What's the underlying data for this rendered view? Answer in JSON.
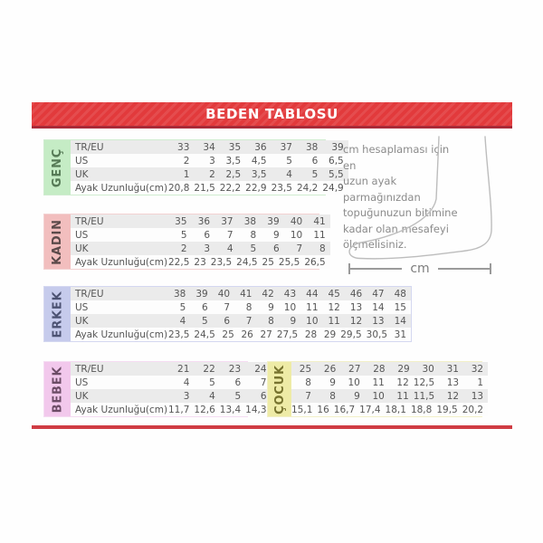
{
  "title": "BEDEN TABLOSU",
  "theme": {
    "banner_red": "#e23a3c",
    "banner_border_red": "#aa2a38",
    "bottom_line_red": "#d03c44",
    "row_alt_gray": "#ebebeb",
    "table_text": "#565656",
    "foot_stroke": "#bdbdbd"
  },
  "instructions": {
    "text": "cm hesaplaması için en uzun ayak parmağınızdan topuğunuzun bitimine kadar olan mesafeyi ölçmelisiniz.",
    "lines": [
      "cm hesaplaması için en",
      "uzun ayak parmağınızdan",
      "topuğunuzun bitimine",
      "kadar olan mesafeyi",
      "ölçmelisiniz."
    ]
  },
  "measure": {
    "unit_label": "cm"
  },
  "sections": [
    {
      "id": "genc",
      "label": "GENÇ",
      "strip_color": "#c5ecc5",
      "border_color": "#cfeccf",
      "label_color": "#567a56",
      "rows": [
        {
          "label": "TR/EU",
          "values": [
            "33",
            "34",
            "35",
            "36",
            "37",
            "38",
            "39"
          ]
        },
        {
          "label": "US",
          "values": [
            "2",
            "3",
            "3,5",
            "4,5",
            "5",
            "6",
            "6,5"
          ]
        },
        {
          "label": "UK",
          "values": [
            "1",
            "2",
            "2,5",
            "3,5",
            "4",
            "5",
            "5,5"
          ]
        },
        {
          "label": "Ayak Uzunluğu(cm)",
          "values": [
            "20,8",
            "21,5",
            "22,2",
            "22,9",
            "23,5",
            "24,2",
            "24,9"
          ]
        }
      ]
    },
    {
      "id": "kadin",
      "label": "KADIN",
      "strip_color": "#f2bebe",
      "border_color": "#f3d2d2",
      "label_color": "#5b4a4a",
      "rows": [
        {
          "label": "TR/EU",
          "values": [
            "35",
            "36",
            "37",
            "38",
            "39",
            "40",
            "41"
          ]
        },
        {
          "label": "US",
          "values": [
            "5",
            "6",
            "7",
            "8",
            "9",
            "10",
            "11"
          ]
        },
        {
          "label": "UK",
          "values": [
            "2",
            "3",
            "4",
            "5",
            "6",
            "7",
            "8"
          ]
        },
        {
          "label": "Ayak Uzunluğu(cm)",
          "values": [
            "22,5",
            "23",
            "23,5",
            "24,5",
            "25",
            "25,5",
            "26,5"
          ]
        }
      ]
    },
    {
      "id": "erkek",
      "label": "ERKEK",
      "strip_color": "#c6cbec",
      "border_color": "#d4d7f0",
      "label_color": "#4c5272",
      "rows": [
        {
          "label": "TR/EU",
          "values": [
            "38",
            "39",
            "40",
            "41",
            "42",
            "43",
            "44",
            "45",
            "46",
            "47",
            "48"
          ]
        },
        {
          "label": "US",
          "values": [
            "5",
            "6",
            "7",
            "8",
            "9",
            "10",
            "11",
            "12",
            "13",
            "14",
            "15"
          ]
        },
        {
          "label": "UK",
          "values": [
            "4",
            "5",
            "6",
            "7",
            "8",
            "9",
            "10",
            "11",
            "12",
            "13",
            "14"
          ]
        },
        {
          "label": "Ayak Uzunluğu(cm)",
          "values": [
            "23,5",
            "24,5",
            "25",
            "26",
            "27",
            "27,5",
            "28",
            "29",
            "29,5",
            "30,5",
            "31"
          ]
        }
      ]
    },
    {
      "id": "bebek",
      "label": "BEBEK",
      "strip_color": "#f2c8ec",
      "border_color": "#f5dcf2",
      "label_color": "#6c4c66",
      "rows": [
        {
          "label": "TR/EU",
          "values": [
            "21",
            "22",
            "23",
            "24"
          ]
        },
        {
          "label": "US",
          "values": [
            "4",
            "5",
            "6",
            "7"
          ]
        },
        {
          "label": "UK",
          "values": [
            "3",
            "4",
            "5",
            "6"
          ]
        },
        {
          "label": "Ayak Uzunluğu(cm)",
          "values": [
            "11,7",
            "12,6",
            "13,4",
            "14,3"
          ]
        }
      ]
    },
    {
      "id": "cocuk",
      "label": "ÇOCUK",
      "strip_color": "#eeeba6",
      "border_color": "#f2f0c8",
      "label_color": "#77732f",
      "rows": [
        {
          "values": [
            "25",
            "26",
            "27",
            "28",
            "29",
            "30",
            "31",
            "32"
          ]
        },
        {
          "values": [
            "8",
            "9",
            "10",
            "11",
            "12",
            "12,5",
            "13",
            "1"
          ]
        },
        {
          "values": [
            "7",
            "8",
            "9",
            "10",
            "11",
            "11,5",
            "12",
            "13"
          ]
        },
        {
          "values": [
            "15,1",
            "16",
            "16,7",
            "17,4",
            "18,1",
            "18,8",
            "19,5",
            "20,2"
          ]
        }
      ]
    }
  ]
}
